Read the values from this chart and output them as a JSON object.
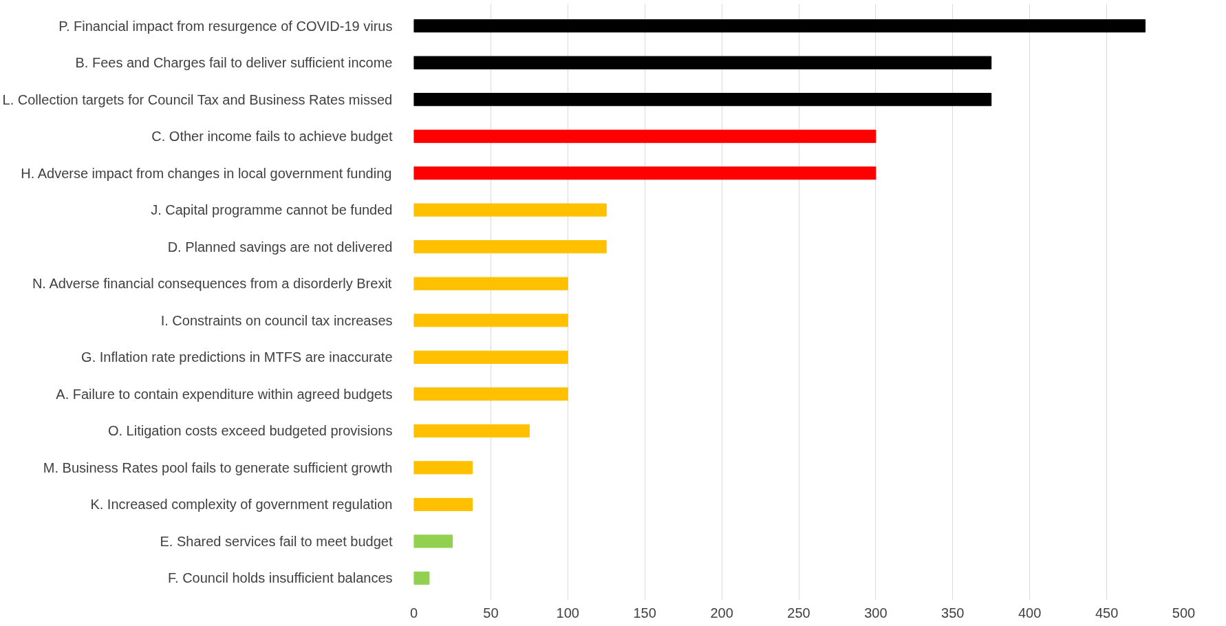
{
  "chart_data": {
    "type": "bar",
    "orientation": "horizontal",
    "categories": [
      "P. Financial impact from resurgence of COVID-19 virus",
      "B. Fees and Charges fail to deliver sufficient income",
      "L. Collection targets for Council Tax and Business Rates missed",
      "C. Other income fails to achieve budget",
      "H. Adverse impact from changes in local government funding",
      "J. Capital programme cannot be funded",
      "D. Planned savings are not delivered",
      "N. Adverse financial consequences from a disorderly Brexit",
      "I. Constraints on council tax increases",
      "G. Inflation rate predictions in MTFS are inaccurate",
      "A. Failure to contain expenditure within agreed budgets",
      "O. Litigation costs exceed budgeted provisions",
      "M. Business Rates pool fails to generate sufficient growth",
      "K. Increased complexity of government regulation",
      "E. Shared services fail to meet budget",
      "F. Council holds insufficient balances"
    ],
    "values": [
      475,
      375,
      375,
      300,
      300,
      125,
      125,
      100,
      100,
      100,
      100,
      75,
      38,
      38,
      25,
      10
    ],
    "colors": [
      "#000000",
      "#000000",
      "#000000",
      "#ff0000",
      "#ff0000",
      "#ffc000",
      "#ffc000",
      "#ffc000",
      "#ffc000",
      "#ffc000",
      "#ffc000",
      "#ffc000",
      "#ffc000",
      "#ffc000",
      "#92d050",
      "#92d050"
    ],
    "xlim": [
      0,
      500
    ],
    "xticks": [
      0,
      50,
      100,
      150,
      200,
      250,
      300,
      350,
      400,
      450,
      500
    ],
    "grid": "x"
  }
}
